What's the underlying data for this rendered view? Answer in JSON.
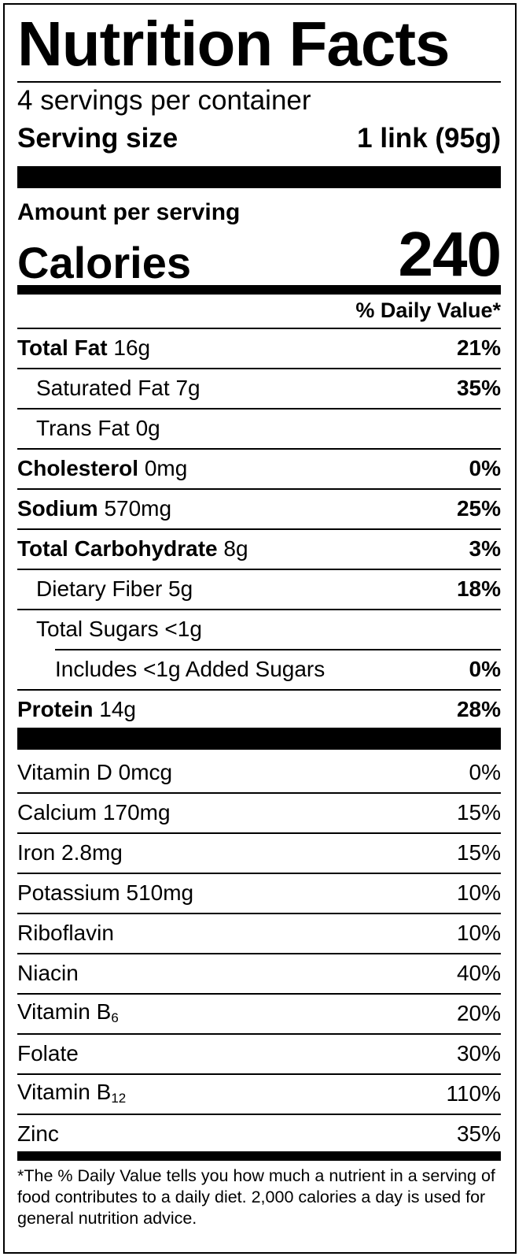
{
  "title": "Nutrition Facts",
  "servings": "4 servings per container",
  "serving_size_label": "Serving size",
  "serving_size_value": "1 link (95g)",
  "amount_per_serving": "Amount per serving",
  "calories_label": "Calories",
  "calories_value": "240",
  "dv_header": "% Daily Value*",
  "nutrients": [
    {
      "name": "Total Fat",
      "amount": "16g",
      "dv": "21%"
    },
    {
      "name": "Saturated Fat",
      "amount": "7g",
      "dv": "35%"
    },
    {
      "name": "Trans Fat",
      "amount": "0g",
      "dv": ""
    },
    {
      "name": "Cholesterol",
      "amount": "0mg",
      "dv": "0%"
    },
    {
      "name": "Sodium",
      "amount": "570mg",
      "dv": "25%"
    },
    {
      "name": "Total Carbohydrate",
      "amount": "8g",
      "dv": "3%"
    },
    {
      "name": "Dietary Fiber",
      "amount": "5g",
      "dv": "18%"
    },
    {
      "name": "Total Sugars",
      "amount": "<1g",
      "dv": ""
    },
    {
      "name": "Includes <1g Added Sugars",
      "amount": "",
      "dv": "0%"
    },
    {
      "name": "Protein",
      "amount": "14g",
      "dv": "28%"
    }
  ],
  "vitamins": [
    {
      "name": "Vitamin D",
      "amount": "0mcg",
      "dv": "0%"
    },
    {
      "name": "Calcium",
      "amount": "170mg",
      "dv": "15%"
    },
    {
      "name": "Iron",
      "amount": "2.8mg",
      "dv": "15%"
    },
    {
      "name": "Potassium",
      "amount": "510mg",
      "dv": "10%"
    },
    {
      "name": "Riboflavin",
      "amount": "",
      "dv": "10%"
    },
    {
      "name": "Niacin",
      "amount": "",
      "dv": "40%"
    },
    {
      "name": "Vitamin B",
      "sub": "6",
      "amount": "",
      "dv": "20%"
    },
    {
      "name": "Folate",
      "amount": "",
      "dv": "30%"
    },
    {
      "name": "Vitamin B",
      "sub": "12",
      "amount": "",
      "dv": "110%"
    },
    {
      "name": "Zinc",
      "amount": "",
      "dv": "35%"
    }
  ],
  "footnote": "*The % Daily Value tells you how much a nutrient in a serving of food contributes to a daily diet. 2,000 calories a day is used for general nutrition advice."
}
